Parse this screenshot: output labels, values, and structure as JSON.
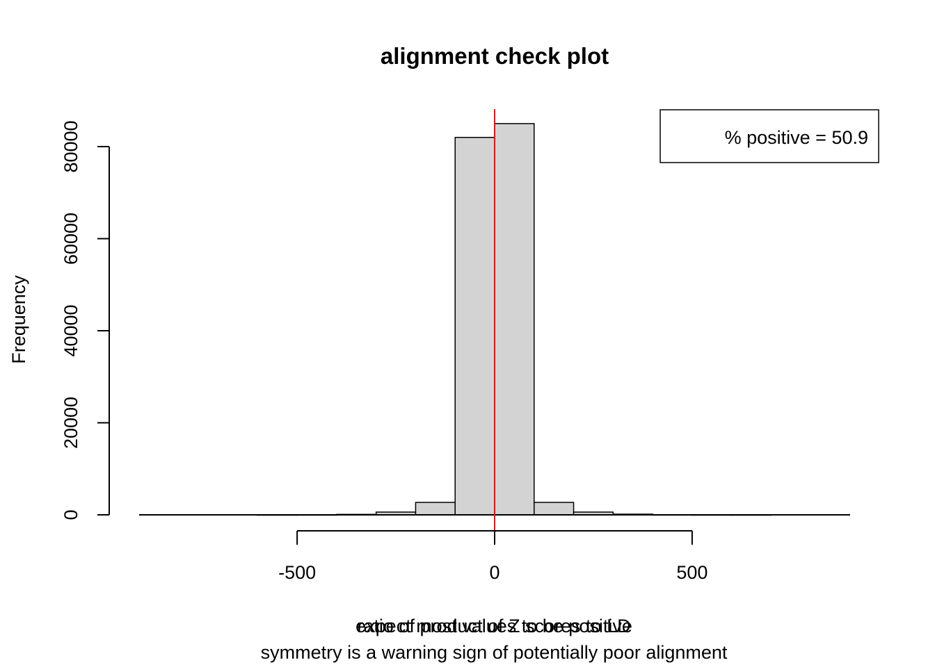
{
  "chart_data": {
    "type": "bar",
    "subtype": "histogram",
    "title": "alignment check plot",
    "xlabel_lines": [
      "ratio of product of Z scores to LD",
      "expect most values to be positive",
      "symmetry is a warning sign of potentially poor alignment"
    ],
    "ylabel": "Frequency",
    "legend": {
      "text": "% positive = 50.9",
      "position": "top-right"
    },
    "bins": [
      {
        "lo": -900,
        "hi": -800,
        "count": 0
      },
      {
        "lo": -800,
        "hi": -700,
        "count": 0
      },
      {
        "lo": -700,
        "hi": -600,
        "count": 0
      },
      {
        "lo": -600,
        "hi": -500,
        "count": 2
      },
      {
        "lo": -500,
        "hi": -400,
        "count": 10
      },
      {
        "lo": -400,
        "hi": -300,
        "count": 100
      },
      {
        "lo": -300,
        "hi": -200,
        "count": 600
      },
      {
        "lo": -200,
        "hi": -100,
        "count": 2700
      },
      {
        "lo": -100,
        "hi": 0,
        "count": 82000
      },
      {
        "lo": 0,
        "hi": 100,
        "count": 85000
      },
      {
        "lo": 100,
        "hi": 200,
        "count": 2700
      },
      {
        "lo": 200,
        "hi": 300,
        "count": 600
      },
      {
        "lo": 300,
        "hi": 400,
        "count": 150
      },
      {
        "lo": 400,
        "hi": 500,
        "count": 20
      },
      {
        "lo": 500,
        "hi": 600,
        "count": 5
      },
      {
        "lo": 600,
        "hi": 700,
        "count": 2
      },
      {
        "lo": 700,
        "hi": 800,
        "count": 0
      },
      {
        "lo": 800,
        "hi": 900,
        "count": 0
      }
    ],
    "x_ticks": [
      -500,
      0,
      500
    ],
    "x_tick_labels": [
      "-500",
      "0",
      "500"
    ],
    "xlim": [
      -900,
      900
    ],
    "y_ticks": [
      0,
      20000,
      40000,
      60000,
      80000
    ],
    "y_tick_labels": [
      "0",
      "20000",
      "40000",
      "60000",
      "80000"
    ],
    "ylim": [
      0,
      88000
    ],
    "vline": {
      "x": 0,
      "color": "#ff0000"
    },
    "bar_fill": "#d3d3d3",
    "bar_stroke": "#000000",
    "grid": false
  }
}
